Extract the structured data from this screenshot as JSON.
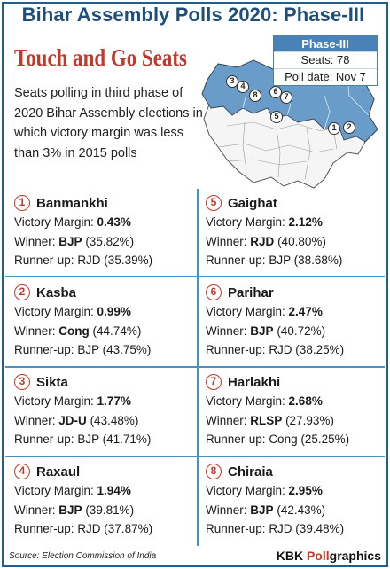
{
  "header": {
    "title": "Bihar Assembly Polls 2020: Phase-III",
    "subtitle": "Touch and Go Seats",
    "intro": "Seats polling in third phase of 2020 Bihar Assembly elections in which victory margin was less than 3% in 2015 polls"
  },
  "phase_box": {
    "heading": "Phase-III",
    "seats": "Seats: 78",
    "poll_date": "Poll date: Nov 7"
  },
  "map": {
    "highlight_color": "#6a9cca",
    "base_color": "#f5f5f5",
    "markers": [
      "1",
      "2",
      "3",
      "4",
      "5",
      "6",
      "7",
      "8"
    ]
  },
  "labels": {
    "margin": "Victory Margin:",
    "winner": "Winner:",
    "runner": "Runner-up:"
  },
  "seats": [
    {
      "num": "1",
      "name": "Banmankhi",
      "margin": "0.43%",
      "winner_party": "BJP",
      "winner_pct": "(35.82%)",
      "runner": "RJD (35.39%)"
    },
    {
      "num": "2",
      "name": "Kasba",
      "margin": "0.99%",
      "winner_party": "Cong",
      "winner_pct": "(44.74%)",
      "runner": "BJP (43.75%)"
    },
    {
      "num": "3",
      "name": "Sikta",
      "margin": "1.77%",
      "winner_party": "JD-U",
      "winner_pct": "(43.48%)",
      "runner": "BJP (41.71%)"
    },
    {
      "num": "4",
      "name": "Raxaul",
      "margin": "1.94%",
      "winner_party": "BJP",
      "winner_pct": "(39.81%)",
      "runner": "RJD (37.87%)"
    },
    {
      "num": "5",
      "name": "Gaighat",
      "margin": "2.12%",
      "winner_party": "RJD",
      "winner_pct": "(40.80%)",
      "runner": "BJP (38.68%)"
    },
    {
      "num": "6",
      "name": "Parihar",
      "margin": "2.47%",
      "winner_party": "BJP",
      "winner_pct": "(40.72%)",
      "runner": "RJD (38.25%)"
    },
    {
      "num": "7",
      "name": "Harlakhi",
      "margin": "2.68%",
      "winner_party": "RLSP",
      "winner_pct": "(27.93%)",
      "runner": "Cong (25.25%)"
    },
    {
      "num": "8",
      "name": "Chiraia",
      "margin": "2.95%",
      "winner_party": "BJP",
      "winner_pct": "(42.43%)",
      "runner": "RJD (39.48%)"
    }
  ],
  "footer": {
    "source": "Source: Election Commission of India",
    "brand_prefix": "KBK ",
    "brand_poll": "Poll",
    "brand_suffix": "graphics"
  }
}
